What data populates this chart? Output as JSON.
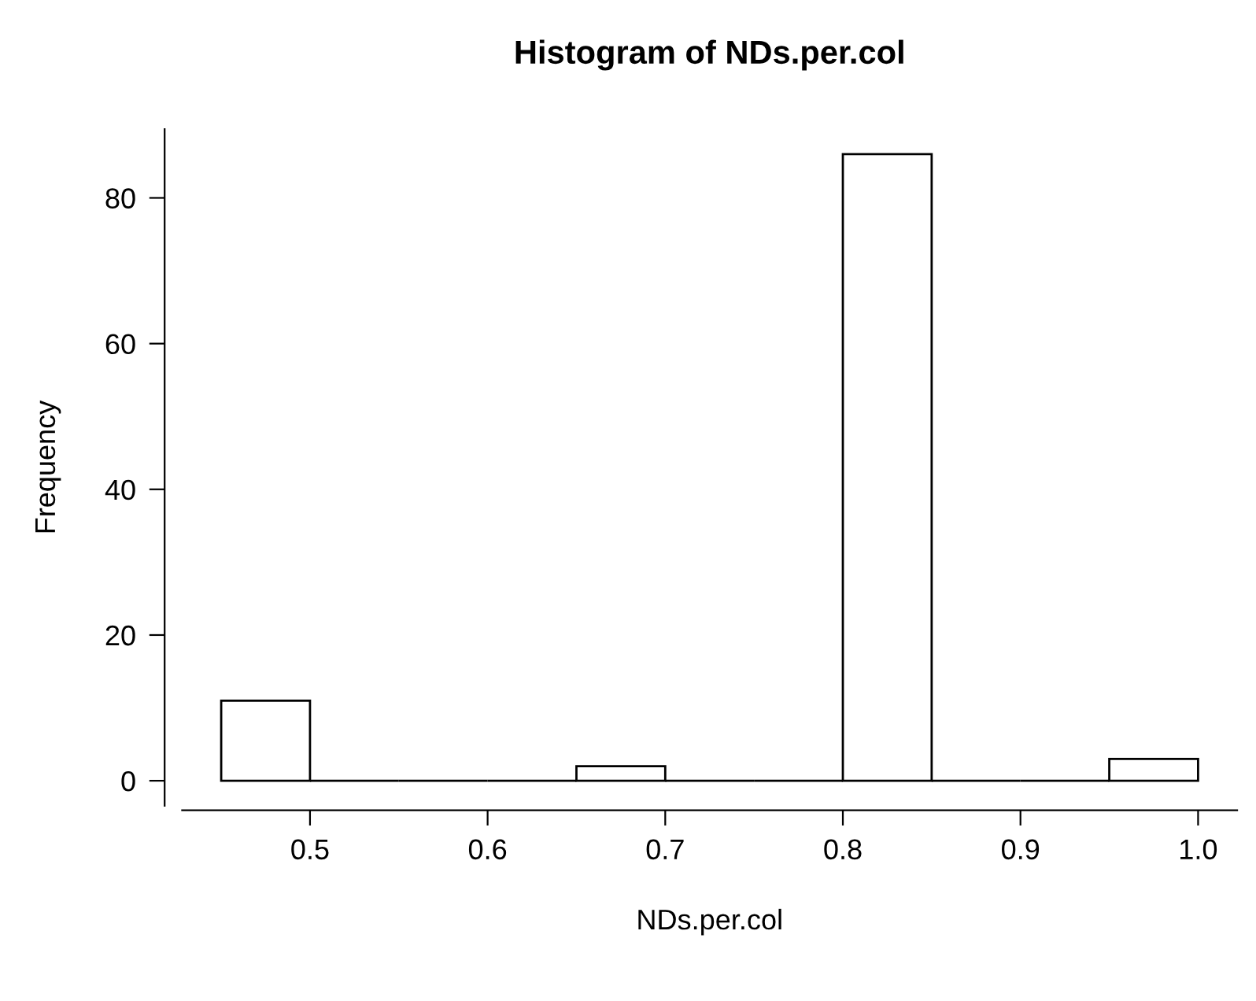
{
  "chart_data": {
    "type": "histogram",
    "title": "Histogram of NDs.per.col",
    "xlabel": "NDs.per.col",
    "ylabel": "Frequency",
    "bins": [
      0.45,
      0.5,
      0.55,
      0.6,
      0.65,
      0.7,
      0.75,
      0.8,
      0.85,
      0.9,
      0.95,
      1.0
    ],
    "values": [
      11,
      0,
      0,
      0,
      2,
      0,
      0,
      86,
      0,
      0,
      3
    ],
    "colors": [
      "#ffffff",
      "#000000",
      "#000000",
      "#000000",
      "#ffffff",
      "#000000",
      "#000000",
      "#ffffff",
      "#000000",
      "#000000",
      "#ffffff"
    ],
    "xlim": [
      0.428,
      1.022
    ],
    "ylim": [
      -3.44,
      89.44
    ],
    "xticks": [
      0.5,
      0.6,
      0.7,
      0.8,
      0.9,
      {
        "value": 1.0,
        "label": "1.0"
      }
    ],
    "yticks": [
      0,
      20,
      40,
      60,
      80
    ],
    "grid": false
  }
}
